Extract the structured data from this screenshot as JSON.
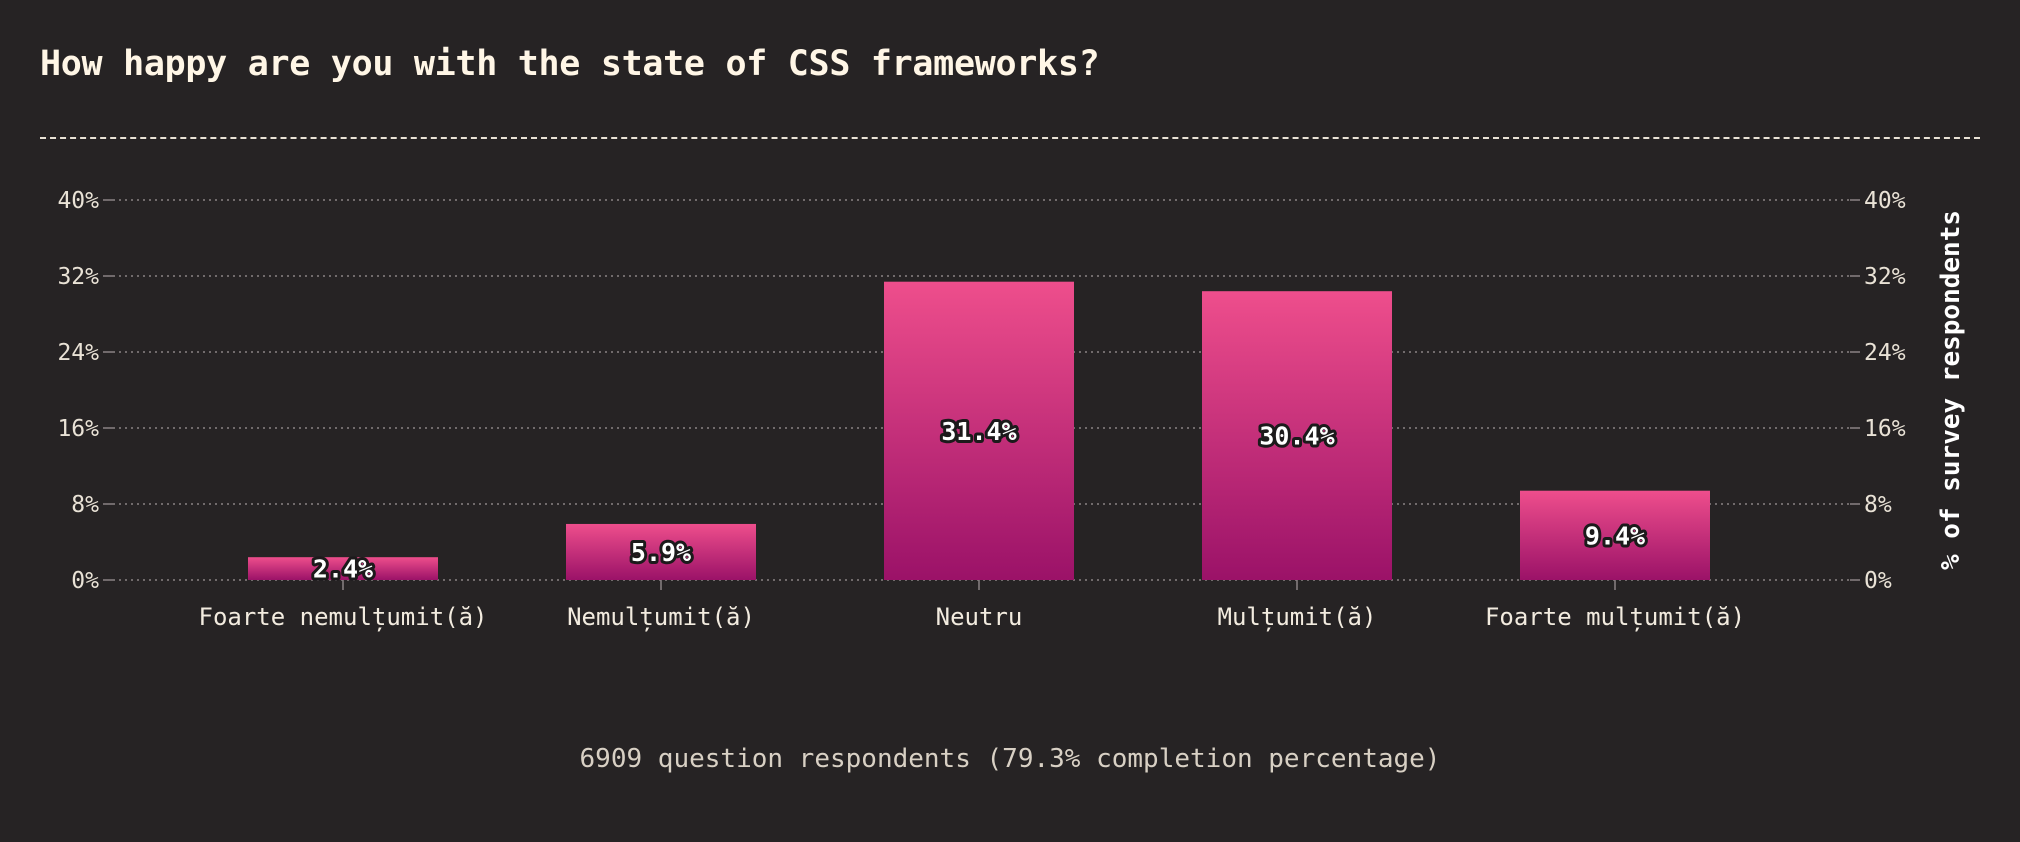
{
  "title": "How happy are you with the state of CSS frameworks?",
  "footer": "6909 question respondents (79.3% completion percentage)",
  "colors": {
    "background": "#262324",
    "bar_top": "#ee4e8c",
    "bar_bottom": "#9b1268",
    "grid": "#8a8384",
    "text": "#e9e2d6"
  },
  "chart_data": {
    "type": "bar",
    "categories": [
      "Foarte nemulțumit(ă)",
      "Nemulțumit(ă)",
      "Neutru",
      "Mulțumit(ă)",
      "Foarte mulțumit(ă)"
    ],
    "values": [
      2.4,
      5.9,
      31.4,
      30.4,
      9.4
    ],
    "value_labels": [
      "2.4%",
      "5.9%",
      "31.4%",
      "30.4%",
      "9.4%"
    ],
    "unit": "%",
    "ylabel": "% of survey respondents",
    "ylim": [
      0,
      40
    ],
    "yticks": [
      0,
      8,
      16,
      24,
      32,
      40
    ],
    "ytick_labels": [
      "0%",
      "8%",
      "16%",
      "24%",
      "32%",
      "40%"
    ],
    "y_axis_sides": "both",
    "grid": true,
    "legend": "none"
  }
}
